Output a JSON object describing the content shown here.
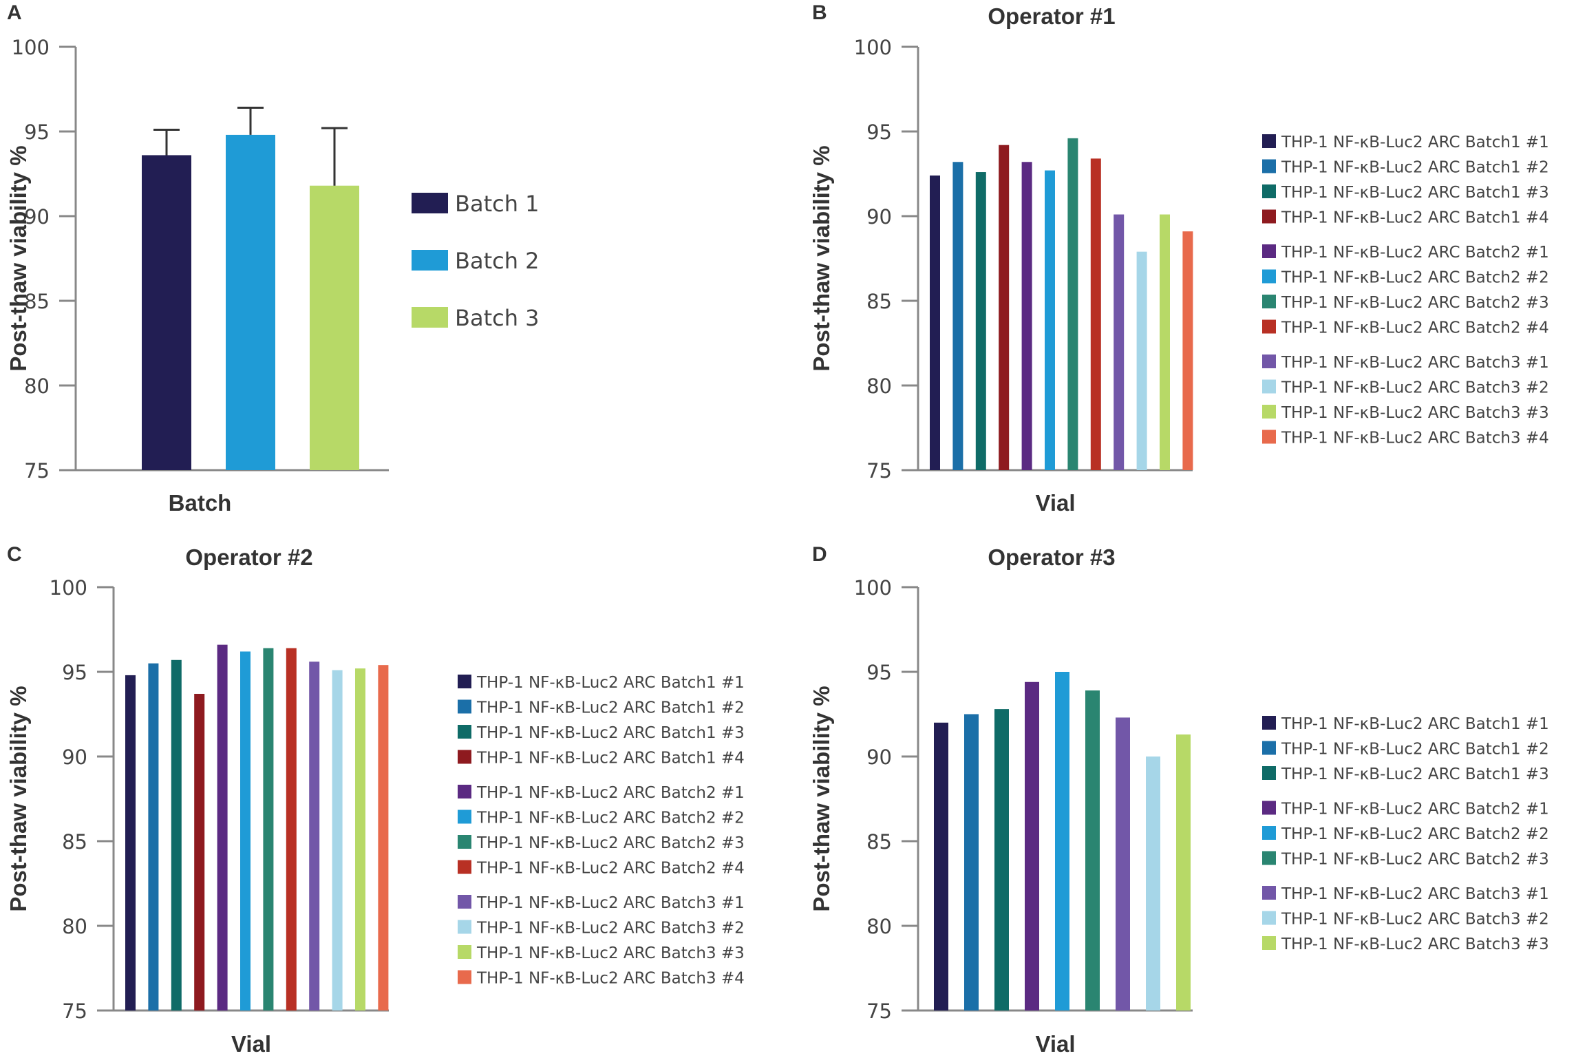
{
  "colors": {
    "batch1_1": "#221e53",
    "batch1_2": "#1b6fa8",
    "batch1_3": "#0f6b67",
    "batch1_4": "#8e1a1f",
    "batch2_1": "#5b2a82",
    "batch2_2": "#1f9bd6",
    "batch2_3": "#2a8571",
    "batch2_4": "#b83024",
    "batch3_1": "#7257a8",
    "batch3_2": "#a6d6e8",
    "batch3_3": "#b7d967",
    "batch3_4": "#e86a4c",
    "summary_batch1": "#221e53",
    "summary_batch2": "#1f9bd6",
    "summary_batch3": "#b7d967"
  },
  "chart_data": [
    {
      "panel": "A",
      "type": "bar",
      "title": "",
      "xlabel": "Batch",
      "ylabel": "Post-thaw viability %",
      "ylim": [
        75,
        100
      ],
      "yticks": [
        75,
        80,
        85,
        90,
        95,
        100
      ],
      "categories": [
        "Batch 1",
        "Batch 2",
        "Batch 3"
      ],
      "values": [
        93.6,
        94.8,
        91.8
      ],
      "errors": [
        1.5,
        1.6,
        3.4
      ],
      "colors": [
        "summary_batch1",
        "summary_batch2",
        "summary_batch3"
      ],
      "legend": [
        "Batch 1",
        "Batch 2",
        "Batch 3"
      ]
    },
    {
      "panel": "B",
      "type": "bar",
      "title": "Operator #1",
      "xlabel": "Vial",
      "ylabel": "Post-thaw viability %",
      "ylim": [
        75,
        100
      ],
      "yticks": [
        75,
        80,
        85,
        90,
        95,
        100
      ],
      "categories": [
        "THP-1 NF-κB-Luc2 ARC Batch1 #1",
        "THP-1 NF-κB-Luc2 ARC Batch1 #2",
        "THP-1 NF-κB-Luc2 ARC Batch1 #3",
        "THP-1 NF-κB-Luc2 ARC Batch1 #4",
        "THP-1 NF-κB-Luc2 ARC Batch2 #1",
        "THP-1 NF-κB-Luc2 ARC Batch2 #2",
        "THP-1 NF-κB-Luc2 ARC Batch2 #3",
        "THP-1 NF-κB-Luc2 ARC Batch2 #4",
        "THP-1 NF-κB-Luc2 ARC Batch3 #1",
        "THP-1 NF-κB-Luc2 ARC Batch3 #2",
        "THP-1 NF-κB-Luc2 ARC Batch3 #3",
        "THP-1 NF-κB-Luc2 ARC Batch3 #4"
      ],
      "values": [
        92.4,
        93.2,
        92.6,
        94.2,
        93.2,
        92.7,
        94.6,
        93.4,
        90.1,
        87.9,
        90.1,
        89.1
      ],
      "colors": [
        "batch1_1",
        "batch1_2",
        "batch1_3",
        "batch1_4",
        "batch2_1",
        "batch2_2",
        "batch2_3",
        "batch2_4",
        "batch3_1",
        "batch3_2",
        "batch3_3",
        "batch3_4"
      ],
      "legend_groups": [
        4,
        4,
        4
      ]
    },
    {
      "panel": "C",
      "type": "bar",
      "title": "Operator #2",
      "xlabel": "Vial",
      "ylabel": "Post-thaw viability %",
      "ylim": [
        75,
        100
      ],
      "yticks": [
        75,
        80,
        85,
        90,
        95,
        100
      ],
      "categories": [
        "THP-1 NF-κB-Luc2 ARC Batch1 #1",
        "THP-1 NF-κB-Luc2 ARC Batch1 #2",
        "THP-1 NF-κB-Luc2 ARC Batch1 #3",
        "THP-1 NF-κB-Luc2 ARC Batch1 #4",
        "THP-1 NF-κB-Luc2 ARC Batch2 #1",
        "THP-1 NF-κB-Luc2 ARC Batch2 #2",
        "THP-1 NF-κB-Luc2 ARC Batch2 #3",
        "THP-1 NF-κB-Luc2 ARC Batch2 #4",
        "THP-1 NF-κB-Luc2 ARC Batch3 #1",
        "THP-1 NF-κB-Luc2 ARC Batch3 #2",
        "THP-1 NF-κB-Luc2 ARC Batch3 #3",
        "THP-1 NF-κB-Luc2 ARC Batch3 #4"
      ],
      "values": [
        94.8,
        95.5,
        95.7,
        93.7,
        96.6,
        96.2,
        96.4,
        96.4,
        95.6,
        95.1,
        95.2,
        95.4
      ],
      "colors": [
        "batch1_1",
        "batch1_2",
        "batch1_3",
        "batch1_4",
        "batch2_1",
        "batch2_2",
        "batch2_3",
        "batch2_4",
        "batch3_1",
        "batch3_2",
        "batch3_3",
        "batch3_4"
      ],
      "legend_groups": [
        4,
        4,
        4
      ]
    },
    {
      "panel": "D",
      "type": "bar",
      "title": "Operator #3",
      "xlabel": "Vial",
      "ylabel": "Post-thaw viability %",
      "ylim": [
        75,
        100
      ],
      "yticks": [
        75,
        80,
        85,
        90,
        95,
        100
      ],
      "categories": [
        "THP-1 NF-κB-Luc2 ARC Batch1 #1",
        "THP-1 NF-κB-Luc2 ARC Batch1 #2",
        "THP-1 NF-κB-Luc2 ARC Batch1 #3",
        "THP-1 NF-κB-Luc2 ARC Batch2 #1",
        "THP-1 NF-κB-Luc2 ARC Batch2 #2",
        "THP-1 NF-κB-Luc2 ARC Batch2 #3",
        "THP-1 NF-κB-Luc2 ARC Batch3 #1",
        "THP-1 NF-κB-Luc2 ARC Batch3 #2",
        "THP-1 NF-κB-Luc2 ARC Batch3 #3"
      ],
      "values": [
        92.0,
        92.5,
        92.8,
        94.4,
        95.0,
        93.9,
        92.3,
        90.0,
        91.3
      ],
      "colors": [
        "batch1_1",
        "batch1_2",
        "batch1_3",
        "batch2_1",
        "batch2_2",
        "batch2_3",
        "batch3_1",
        "batch3_2",
        "batch3_3"
      ],
      "legend_groups": [
        3,
        3,
        3
      ]
    }
  ]
}
